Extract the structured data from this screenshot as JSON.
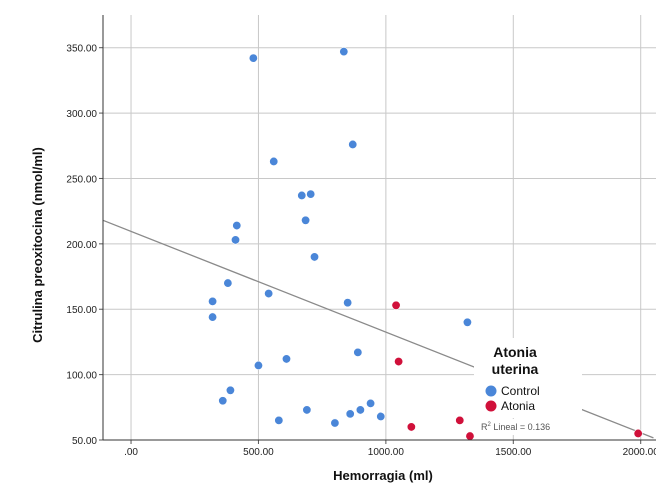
{
  "chart_data": {
    "type": "scatter",
    "title": "",
    "xlabel": "Hemorragia (ml)",
    "ylabel": "Citrulina preoxitocina (nmol/ml)",
    "xlim": [
      -110,
      2060
    ],
    "ylim": [
      50,
      375
    ],
    "x_ticks": [
      ".00",
      "500.00",
      "1000.00",
      "1500.00",
      "2000.00"
    ],
    "x_tick_values": [
      0,
      500,
      1000,
      1500,
      2000
    ],
    "y_ticks": [
      "50.00",
      "100.00",
      "150.00",
      "200.00",
      "250.00",
      "300.00",
      "350.00"
    ],
    "y_tick_values": [
      50,
      100,
      150,
      200,
      250,
      300,
      350
    ],
    "grid": true,
    "legend": {
      "title": "Atonia uterina",
      "placement": "right-middle"
    },
    "series": [
      {
        "name": "Control",
        "color": "#4a86d8",
        "points": [
          [
            480,
            342
          ],
          [
            835,
            347
          ],
          [
            870,
            276
          ],
          [
            560,
            263
          ],
          [
            670,
            237
          ],
          [
            705,
            238
          ],
          [
            415,
            214
          ],
          [
            410,
            203
          ],
          [
            685,
            218
          ],
          [
            720,
            190
          ],
          [
            380,
            170
          ],
          [
            540,
            162
          ],
          [
            320,
            156
          ],
          [
            320,
            144
          ],
          [
            850,
            155
          ],
          [
            1320,
            140
          ],
          [
            890,
            117
          ],
          [
            610,
            112
          ],
          [
            500,
            107
          ],
          [
            390,
            88
          ],
          [
            360,
            80
          ],
          [
            580,
            65
          ],
          [
            690,
            73
          ],
          [
            800,
            63
          ],
          [
            860,
            70
          ],
          [
            900,
            73
          ],
          [
            940,
            78
          ],
          [
            980,
            68
          ]
        ]
      },
      {
        "name": "Atonia",
        "color": "#d0103a",
        "points": [
          [
            1040,
            153
          ],
          [
            1050,
            110
          ],
          [
            1100,
            60
          ],
          [
            1290,
            65
          ],
          [
            1330,
            53
          ],
          [
            1990,
            55
          ]
        ]
      }
    ],
    "fit_line": {
      "label": "R² Lineal = 0.136",
      "label_prefix": "R",
      "label_sup": "2",
      "label_suffix": " Lineal = 0.136",
      "x": [
        -110,
        1500
      ],
      "y": [
        218,
        94
      ],
      "color": "#8a8a8a"
    }
  }
}
